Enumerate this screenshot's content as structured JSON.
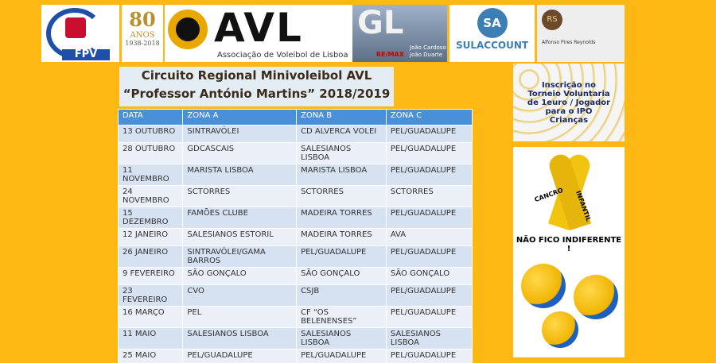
{
  "banner": {
    "fpv": "FPV",
    "anos_number": "80",
    "anos_word": "ANOS",
    "anos_years": "1938-2018",
    "avl": "AVL",
    "avl_sub": "Associação de Voleibol de Lisboa",
    "gl": "GL",
    "remax": "RE/MAX",
    "gl_name1": "João Cardoso",
    "gl_name2": "João Duarte",
    "sa": "SA",
    "sulaccount": "SULACCOUNT",
    "rs": "RS",
    "rs_name": "Alfonso Pires Reynolds"
  },
  "title": {
    "line1": "Circuito Regional Minivoleibol AVL",
    "line2": "“Professor António Martins” 2018/2019"
  },
  "table": {
    "header": [
      "DATA",
      "ZONA A",
      "ZONA B",
      "ZONA C"
    ],
    "rows": [
      [
        "13 OUTUBRO",
        "SINTRAVÓLEI",
        "CD ALVERCA VOLEI",
        "PEL/GUADALUPE"
      ],
      [
        "28 OUTUBRO",
        "GDCASCAIS",
        "SALESIANOS LISBOA",
        "PEL/GUADALUPE"
      ],
      [
        "11 NOVEMBRO",
        "MARISTA LISBOA",
        "MARISTA LISBOA",
        "PEL/GUADALUPE"
      ],
      [
        "24 NOVEMBRO",
        "SCTORRES",
        "SCTORRES",
        "SCTORRES"
      ],
      [
        "15 DEZEMBRO",
        "FAMÕES CLUBE",
        "MADEIRA TORRES",
        "PEL/GUADALUPE"
      ],
      [
        "12 JANEIRO",
        "SALESIANOS ESTORIL",
        "MADEIRA TORRES",
        "AVA"
      ],
      [
        "26 JANEIRO",
        "SINTRAVÓLEI/GAMA BARROS",
        "PEL/GUADALUPE",
        "PEL/GUADALUPE"
      ],
      [
        "9 FEVEREIRO",
        "SÃO GONÇALO",
        "SÃO GONÇALO",
        "SÃO GONÇALO"
      ],
      [
        "23 FEVEREIRO",
        "CVO",
        "CSJB",
        "PEL/GUADALUPE"
      ],
      [
        "16 MARÇO",
        "PEL",
        "CF “OS BELENENSES”",
        "PEL/GUADALUPE"
      ],
      [
        "11 MAIO",
        "SALESIANOS LISBOA",
        "SALESIANOS LISBOA",
        "SALESIANOS LISBOA"
      ],
      [
        "25 MAIO",
        "PEL/GUADALUPE",
        "PEL/GUADALUPE",
        "PEL/GUADALUPE"
      ]
    ]
  },
  "side": {
    "ipo": "Inscrição no Torneio Voluntaria de 1euro / Jogador para o IPO Crianças",
    "cancro": "CANCRO",
    "infantil": "INFANTIL",
    "indiferente": "NÃO FICO INDIFERENTE !"
  }
}
